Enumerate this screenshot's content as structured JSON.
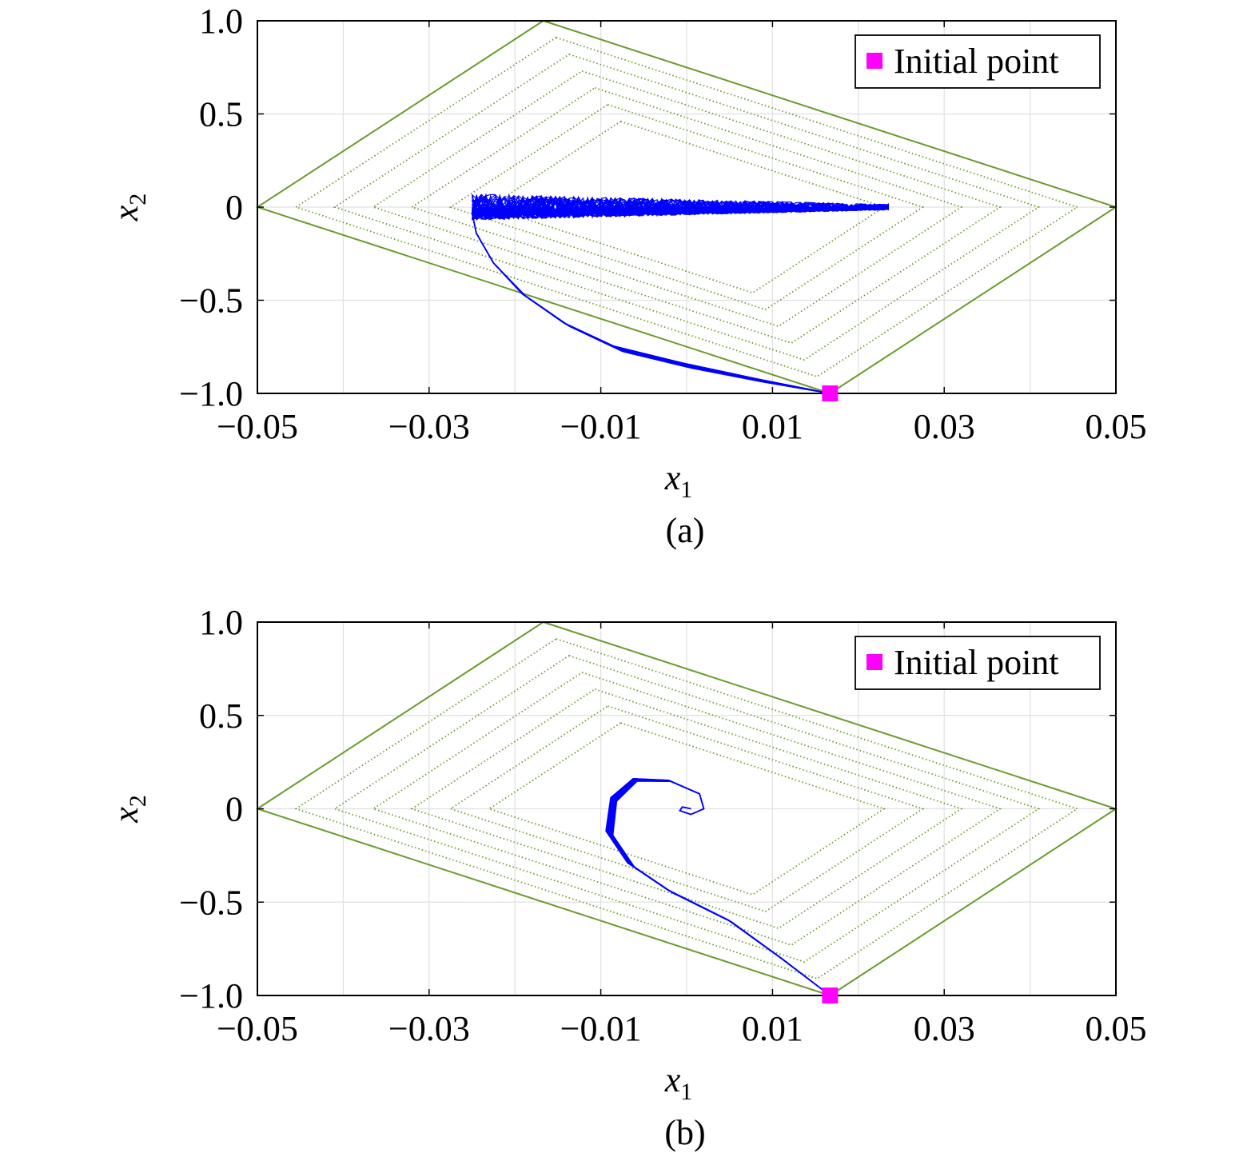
{
  "chart_data": [
    {
      "type": "line",
      "panel_label": "(a)",
      "xlabel": "x",
      "xlabel_sub": "1",
      "ylabel": "x",
      "ylabel_sub": "2",
      "xlim": [
        -0.05,
        0.05
      ],
      "ylim": [
        -1.0,
        1.0
      ],
      "x_ticks": [
        -0.05,
        -0.03,
        -0.01,
        0.01,
        0.03,
        0.05
      ],
      "x_tick_labels": [
        "−0.05",
        "−0.03",
        "−0.01",
        "0.01",
        "0.03",
        "0.05"
      ],
      "y_ticks": [
        1.0,
        0.5,
        0,
        -0.5,
        -1.0
      ],
      "y_tick_labels": [
        "1.0",
        "0.5",
        "0",
        "−0.5",
        "−1.0"
      ],
      "grid": true,
      "legend": {
        "position": "top-right",
        "entries": [
          {
            "label": "Initial point",
            "color": "#ff00ff",
            "marker": "square"
          }
        ]
      },
      "colors": {
        "trajectory": "#0000ff",
        "boundary": "#6b9a2e",
        "contours": "#6b9a2e",
        "initial_point": "#ff00ff"
      },
      "initial_point": [
        0.0167,
        -1.0
      ],
      "boundary_polygon": [
        [
          -0.0167,
          1.0
        ],
        [
          0.05,
          0.0
        ],
        [
          0.0167,
          -1.0
        ],
        [
          -0.05,
          0.0
        ]
      ],
      "level_sets_x_extent": [
        0.0455,
        0.041,
        0.0365,
        0.032,
        0.0275,
        0.023
      ],
      "trajectory_band_center": [
        [
          0.0167,
          -1.0
        ],
        [
          0.0085,
          -0.93
        ],
        [
          0.0,
          -0.85
        ],
        [
          -0.008,
          -0.76
        ],
        [
          -0.014,
          -0.63
        ],
        [
          -0.019,
          -0.47
        ],
        [
          -0.0225,
          -0.3
        ],
        [
          -0.0245,
          -0.14
        ],
        [
          -0.025,
          -0.03
        ],
        [
          -0.024,
          0.0
        ]
      ],
      "oscillation_band": {
        "x_range": [
          -0.025,
          0.0235
        ],
        "y_center": 0.0,
        "y_halfwidth_at_left": 0.07,
        "y_halfwidth_at_right": 0.015
      }
    },
    {
      "type": "line",
      "panel_label": "(b)",
      "xlabel": "x",
      "xlabel_sub": "1",
      "ylabel": "x",
      "ylabel_sub": "2",
      "xlim": [
        -0.05,
        0.05
      ],
      "ylim": [
        -1.0,
        1.0
      ],
      "x_ticks": [
        -0.05,
        -0.03,
        -0.01,
        0.01,
        0.03,
        0.05
      ],
      "x_tick_labels": [
        "−0.05",
        "−0.03",
        "−0.01",
        "0.01",
        "0.03",
        "0.05"
      ],
      "y_ticks": [
        1.0,
        0.5,
        0,
        -0.5,
        -1.0
      ],
      "y_tick_labels": [
        "1.0",
        "0.5",
        "0",
        "−0.5",
        "−1.0"
      ],
      "grid": true,
      "legend": {
        "position": "top-right",
        "entries": [
          {
            "label": "Initial point",
            "color": "#ff00ff",
            "marker": "square"
          }
        ]
      },
      "colors": {
        "trajectory": "#0000ff",
        "boundary": "#6b9a2e",
        "contours": "#6b9a2e",
        "initial_point": "#ff00ff"
      },
      "initial_point": [
        0.0167,
        -1.0
      ],
      "boundary_polygon": [
        [
          -0.0167,
          1.0
        ],
        [
          0.05,
          0.0
        ],
        [
          0.0167,
          -1.0
        ],
        [
          -0.05,
          0.0
        ]
      ],
      "level_sets_x_extent": [
        0.0455,
        0.041,
        0.0365,
        0.032,
        0.0275,
        0.023
      ],
      "trajectory_band_center": [
        [
          0.0167,
          -1.0
        ],
        [
          0.011,
          -0.8
        ],
        [
          0.005,
          -0.6
        ],
        [
          -0.002,
          -0.44
        ],
        [
          -0.0065,
          -0.3
        ],
        [
          -0.009,
          -0.13
        ],
        [
          -0.0085,
          0.05
        ],
        [
          -0.006,
          0.155
        ],
        [
          -0.002,
          0.15
        ],
        [
          0.0015,
          0.08
        ],
        [
          0.002,
          0.0
        ],
        [
          0.0005,
          -0.03
        ],
        [
          -0.0008,
          -0.01
        ],
        [
          -0.0005,
          0.01
        ],
        [
          0.0005,
          0.0
        ]
      ]
    }
  ]
}
